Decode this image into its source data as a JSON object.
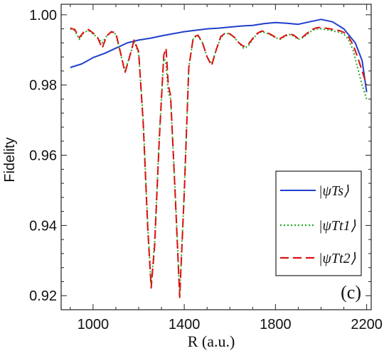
{
  "chart_data": {
    "type": "line",
    "title": "",
    "xlabel": "R (a.u.)",
    "ylabel": "Fidelity",
    "panel_label": "(c)",
    "xlim": [
      860,
      2220
    ],
    "ylim": [
      0.916,
      1.003
    ],
    "x_ticks": [
      1000,
      1400,
      1800,
      2200
    ],
    "y_ticks": [
      0.92,
      0.94,
      0.96,
      0.98,
      1.0
    ],
    "x_tick_labels": [
      "1000",
      "1400",
      "1800",
      "2200"
    ],
    "y_tick_labels": [
      "0.92",
      "0.94",
      "0.96",
      "0.98",
      "1.00"
    ],
    "legend_position": "right-middle",
    "grid": false,
    "series": [
      {
        "name": "|ψTs⟩",
        "color": "#1f3fcc",
        "style": "solid",
        "x": [
          900,
          950,
          1000,
          1050,
          1100,
          1150,
          1200,
          1250,
          1300,
          1350,
          1400,
          1450,
          1500,
          1550,
          1600,
          1650,
          1700,
          1750,
          1800,
          1850,
          1900,
          1950,
          2000,
          2050,
          2100,
          2150,
          2180,
          2200
        ],
        "y": [
          0.985,
          0.986,
          0.9878,
          0.989,
          0.9905,
          0.992,
          0.9928,
          0.9933,
          0.994,
          0.9946,
          0.9952,
          0.9956,
          0.996,
          0.9962,
          0.9965,
          0.9968,
          0.997,
          0.9975,
          0.9978,
          0.9976,
          0.9973,
          0.998,
          0.9987,
          0.998,
          0.996,
          0.992,
          0.987,
          0.978
        ]
      },
      {
        "name": "|ψTt1⟩",
        "color": "#22aa22",
        "style": "dotted",
        "x": [
          900,
          920,
          940,
          960,
          980,
          1000,
          1020,
          1040,
          1060,
          1080,
          1100,
          1120,
          1140,
          1160,
          1180,
          1200,
          1220,
          1240,
          1255,
          1270,
          1290,
          1310,
          1320,
          1330,
          1340,
          1360,
          1380,
          1400,
          1420,
          1440,
          1460,
          1480,
          1500,
          1520,
          1540,
          1560,
          1580,
          1600,
          1620,
          1640,
          1660,
          1680,
          1700,
          1720,
          1740,
          1760,
          1780,
          1800,
          1820,
          1840,
          1860,
          1880,
          1900,
          1920,
          1940,
          1960,
          1980,
          2000,
          2020,
          2040,
          2060,
          2080,
          2100,
          2120,
          2140,
          2160,
          2180,
          2200
        ],
        "y": [
          0.996,
          0.9955,
          0.993,
          0.995,
          0.9955,
          0.9945,
          0.9935,
          0.992,
          0.994,
          0.995,
          0.9945,
          0.989,
          0.984,
          0.988,
          0.9925,
          0.989,
          0.97,
          0.94,
          0.923,
          0.935,
          0.965,
          0.988,
          0.986,
          0.978,
          0.976,
          0.95,
          0.92,
          0.95,
          0.985,
          0.9935,
          0.994,
          0.992,
          0.988,
          0.986,
          0.99,
          0.9935,
          0.9948,
          0.9945,
          0.9935,
          0.992,
          0.9905,
          0.991,
          0.993,
          0.9945,
          0.9952,
          0.9948,
          0.9942,
          0.9935,
          0.993,
          0.9938,
          0.9944,
          0.994,
          0.993,
          0.9935,
          0.9945,
          0.9955,
          0.996,
          0.996,
          0.9958,
          0.9956,
          0.9953,
          0.995,
          0.9945,
          0.993,
          0.99,
          0.985,
          0.98,
          0.976
        ]
      },
      {
        "name": "|ψTt2⟩",
        "color": "#dd1111",
        "style": "dashed",
        "x": [
          900,
          920,
          940,
          960,
          980,
          1000,
          1020,
          1040,
          1060,
          1080,
          1100,
          1120,
          1140,
          1160,
          1180,
          1200,
          1220,
          1240,
          1255,
          1270,
          1290,
          1310,
          1320,
          1330,
          1340,
          1360,
          1380,
          1400,
          1420,
          1440,
          1460,
          1480,
          1500,
          1520,
          1540,
          1560,
          1580,
          1600,
          1620,
          1640,
          1660,
          1680,
          1700,
          1720,
          1740,
          1760,
          1780,
          1800,
          1820,
          1840,
          1860,
          1880,
          1900,
          1920,
          1940,
          1960,
          1980,
          2000,
          2020,
          2040,
          2060,
          2080,
          2100,
          2120,
          2140,
          2160,
          2180,
          2200
        ],
        "y": [
          0.9962,
          0.9958,
          0.9935,
          0.9952,
          0.9958,
          0.9948,
          0.9935,
          0.9905,
          0.994,
          0.9952,
          0.9948,
          0.9893,
          0.9835,
          0.988,
          0.9928,
          0.9895,
          0.969,
          0.939,
          0.9222,
          0.934,
          0.964,
          0.9885,
          0.9905,
          0.98,
          0.977,
          0.949,
          0.9195,
          0.949,
          0.985,
          0.9937,
          0.9942,
          0.992,
          0.988,
          0.9855,
          0.99,
          0.9938,
          0.9948,
          0.9946,
          0.9936,
          0.992,
          0.991,
          0.9915,
          0.9932,
          0.9947,
          0.9954,
          0.995,
          0.9944,
          0.9936,
          0.9932,
          0.994,
          0.9946,
          0.9942,
          0.9932,
          0.9937,
          0.9948,
          0.9958,
          0.9963,
          0.9964,
          0.9962,
          0.996,
          0.9957,
          0.9955,
          0.995,
          0.9938,
          0.9915,
          0.988,
          0.984,
          0.98
        ]
      }
    ]
  }
}
